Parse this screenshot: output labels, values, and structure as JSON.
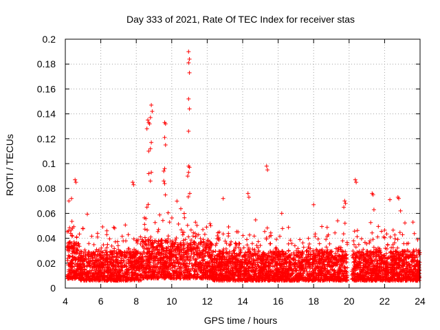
{
  "chart_data": {
    "type": "scatter",
    "title": "Day 333 of 2021, Rate Of TEC Index for receiver stas",
    "xlabel": "GPS time / hours",
    "ylabel": "ROTI / TECUs",
    "xlim": [
      4,
      24
    ],
    "ylim": [
      0,
      0.2
    ],
    "xticks": [
      "4",
      "6",
      "8",
      "10",
      "12",
      "14",
      "16",
      "18",
      "20",
      "22",
      "24"
    ],
    "yticks": [
      "0",
      "0.02",
      "0.04",
      "0.06",
      "0.08",
      "0.1",
      "0.12",
      "0.14",
      "0.16",
      "0.18",
      "0.2"
    ],
    "grid": true,
    "marker": "+",
    "color": "#ff0000",
    "series": [
      {
        "name": "ROTI",
        "points": [
          [
            8.6,
            0.128
          ],
          [
            8.65,
            0.135
          ],
          [
            8.7,
            0.133
          ],
          [
            8.75,
            0.132
          ],
          [
            8.8,
            0.137
          ],
          [
            8.85,
            0.147
          ],
          [
            8.9,
            0.142
          ],
          [
            8.7,
            0.11
          ],
          [
            8.85,
            0.117
          ],
          [
            8.8,
            0.112
          ],
          [
            8.7,
            0.092
          ],
          [
            8.85,
            0.093
          ],
          [
            8.8,
            0.086
          ],
          [
            8.6,
            0.065
          ],
          [
            9.6,
            0.133
          ],
          [
            9.65,
            0.132
          ],
          [
            9.6,
            0.121
          ],
          [
            9.65,
            0.115
          ],
          [
            9.6,
            0.096
          ],
          [
            9.55,
            0.094
          ],
          [
            10.95,
            0.19
          ],
          [
            11.0,
            0.184
          ],
          [
            10.95,
            0.181
          ],
          [
            11.0,
            0.173
          ],
          [
            10.95,
            0.152
          ],
          [
            11.0,
            0.144
          ],
          [
            10.95,
            0.126
          ],
          [
            10.95,
            0.098
          ],
          [
            11.0,
            0.097
          ],
          [
            10.95,
            0.093
          ],
          [
            10.9,
            0.09
          ],
          [
            15.35,
            0.098
          ],
          [
            15.4,
            0.095
          ],
          [
            4.55,
            0.087
          ],
          [
            4.6,
            0.085
          ],
          [
            4.35,
            0.072
          ],
          [
            4.2,
            0.07
          ],
          [
            7.8,
            0.085
          ],
          [
            7.85,
            0.083
          ],
          [
            9.55,
            0.086
          ],
          [
            9.6,
            0.084
          ],
          [
            20.35,
            0.087
          ],
          [
            20.4,
            0.085
          ],
          [
            21.3,
            0.076
          ],
          [
            21.35,
            0.075
          ],
          [
            22.75,
            0.073
          ],
          [
            22.8,
            0.072
          ],
          [
            22.3,
            0.071
          ],
          [
            12.9,
            0.072
          ],
          [
            14.3,
            0.076
          ],
          [
            14.35,
            0.073
          ],
          [
            18.0,
            0.067
          ],
          [
            19.75,
            0.07
          ],
          [
            19.8,
            0.068
          ],
          [
            19.7,
            0.065
          ],
          [
            21.4,
            0.063
          ],
          [
            22.9,
            0.062
          ],
          [
            23.6,
            0.053
          ],
          [
            16.2,
            0.06
          ]
        ]
      }
    ]
  }
}
